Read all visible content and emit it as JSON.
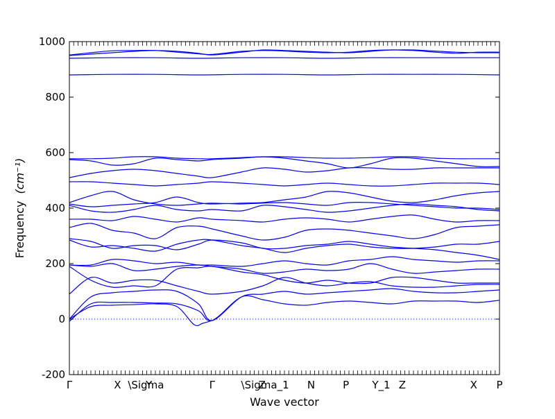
{
  "chart_data": {
    "type": "line",
    "title": "",
    "xlabel": "Wave vector",
    "ylabel": "Frequency",
    "ylabel_unit": "(cm⁻¹)",
    "ylim": [
      -200,
      1000
    ],
    "yticks": [
      -200,
      0,
      200,
      400,
      600,
      800,
      1000
    ],
    "grid": false,
    "line_color": "#0000ff",
    "zero_line": {
      "y": 0,
      "style": "dotted",
      "color": "#0000ff"
    },
    "x_range": [
      0,
      1
    ],
    "high_symmetry_points": [
      {
        "label": "Γ",
        "x": 0.0
      },
      {
        "label": "X",
        "x": 0.112
      },
      {
        "label": "\\Sigma",
        "x": 0.178
      },
      {
        "label": "Y",
        "x": 0.185
      },
      {
        "label": "Γ",
        "x": 0.332
      },
      {
        "label": "\\Sigma_1",
        "x": 0.455
      },
      {
        "label": "Z",
        "x": 0.448
      },
      {
        "label": "N",
        "x": 0.562
      },
      {
        "label": "P",
        "x": 0.643
      },
      {
        "label": "Y_1",
        "x": 0.725
      },
      {
        "label": "Z",
        "x": 0.774
      },
      {
        "label": "X",
        "x": 0.94
      },
      {
        "label": "P",
        "x": 1.0
      }
    ],
    "series": [
      {
        "x": [
          0.0,
          0.05,
          0.1,
          0.15,
          0.2,
          0.25,
          0.3,
          0.332,
          0.4,
          0.45,
          0.5,
          0.55,
          0.6,
          0.65,
          0.7,
          0.75,
          0.8,
          0.85,
          0.9,
          0.95,
          1.0
        ],
        "y": [
          -8,
          55,
          60,
          60,
          58,
          55,
          30,
          -5,
          80,
          70,
          55,
          50,
          60,
          65,
          60,
          55,
          65,
          65,
          65,
          60,
          68
        ]
      },
      {
        "x": [
          0.0,
          0.05,
          0.1,
          0.15,
          0.2,
          0.25,
          0.3,
          0.332,
          0.4,
          0.45,
          0.5,
          0.55,
          0.6,
          0.65,
          0.7,
          0.75,
          0.8,
          0.85,
          0.9,
          0.95,
          1.0
        ],
        "y": [
          0,
          80,
          95,
          100,
          105,
          100,
          55,
          -5,
          80,
          90,
          100,
          90,
          95,
          100,
          105,
          110,
          100,
          95,
          95,
          100,
          105
        ]
      },
      {
        "x": [
          0.0,
          0.05,
          0.1,
          0.15,
          0.2,
          0.25,
          0.29,
          0.31,
          0.332
        ],
        "y": [
          0,
          45,
          50,
          52,
          55,
          45,
          -20,
          -15,
          -5
        ]
      },
      {
        "x": [
          0.0,
          0.05,
          0.1,
          0.15,
          0.2,
          0.25,
          0.3,
          0.332,
          0.4,
          0.45,
          0.5,
          0.55,
          0.6,
          0.65,
          0.7,
          0.75,
          0.8,
          0.85,
          0.9,
          0.95,
          1.0
        ],
        "y": [
          90,
          150,
          130,
          140,
          140,
          120,
          100,
          90,
          100,
          120,
          150,
          130,
          120,
          130,
          135,
          120,
          115,
          115,
          120,
          125,
          125
        ]
      },
      {
        "x": [
          0.0,
          0.05,
          0.1,
          0.15,
          0.2,
          0.25,
          0.3,
          0.332,
          0.4,
          0.45,
          0.5,
          0.55,
          0.6,
          0.65,
          0.7,
          0.75,
          0.8,
          0.85,
          0.9,
          0.95,
          1.0
        ],
        "y": [
          190,
          140,
          115,
          120,
          120,
          180,
          185,
          190,
          170,
          160,
          140,
          130,
          140,
          130,
          130,
          150,
          150,
          140,
          130,
          130,
          130
        ]
      },
      {
        "x": [
          0.0,
          0.05,
          0.1,
          0.15,
          0.2,
          0.25,
          0.3,
          0.332,
          0.4,
          0.45,
          0.5,
          0.55,
          0.6,
          0.65,
          0.7,
          0.75,
          0.8,
          0.85,
          0.9,
          0.95,
          1.0
        ],
        "y": [
          195,
          190,
          200,
          175,
          180,
          190,
          195,
          190,
          180,
          165,
          170,
          180,
          175,
          180,
          200,
          180,
          165,
          170,
          175,
          180,
          180
        ]
      },
      {
        "x": [
          0.0,
          0.05,
          0.1,
          0.15,
          0.2,
          0.25,
          0.3,
          0.332,
          0.4,
          0.45,
          0.5,
          0.55,
          0.6,
          0.65,
          0.7,
          0.75,
          0.8,
          0.85,
          0.9,
          0.95,
          1.0
        ],
        "y": [
          195,
          195,
          215,
          210,
          200,
          205,
          195,
          195,
          190,
          200,
          210,
          200,
          195,
          210,
          215,
          225,
          215,
          210,
          205,
          210,
          210
        ]
      },
      {
        "x": [
          0.0,
          0.05,
          0.1,
          0.15,
          0.2,
          0.25,
          0.3,
          0.332,
          0.4,
          0.45,
          0.5,
          0.55,
          0.6,
          0.65,
          0.7,
          0.75,
          0.8,
          0.85,
          0.9,
          0.95,
          1.0
        ],
        "y": [
          285,
          260,
          265,
          255,
          245,
          270,
          285,
          285,
          265,
          255,
          240,
          255,
          265,
          270,
          260,
          255,
          255,
          260,
          270,
          270,
          280
        ]
      },
      {
        "x": [
          0.0,
          0.05,
          0.1,
          0.15,
          0.2,
          0.25,
          0.3,
          0.332,
          0.4,
          0.45,
          0.5,
          0.55,
          0.6,
          0.65,
          0.7,
          0.75,
          0.8,
          0.85,
          0.9,
          0.95,
          1.0
        ],
        "y": [
          290,
          280,
          255,
          265,
          265,
          250,
          270,
          285,
          275,
          255,
          255,
          265,
          270,
          280,
          270,
          260,
          255,
          250,
          240,
          230,
          215
        ]
      },
      {
        "x": [
          0.0,
          0.05,
          0.1,
          0.15,
          0.2,
          0.25,
          0.3,
          0.332,
          0.4,
          0.45,
          0.5,
          0.55,
          0.6,
          0.65,
          0.7,
          0.75,
          0.8,
          0.85,
          0.9,
          0.95,
          1.0
        ],
        "y": [
          330,
          345,
          320,
          310,
          290,
          330,
          335,
          325,
          300,
          285,
          295,
          320,
          325,
          320,
          310,
          300,
          290,
          305,
          330,
          335,
          340
        ]
      },
      {
        "x": [
          0.0,
          0.05,
          0.1,
          0.15,
          0.2,
          0.25,
          0.3,
          0.332,
          0.4,
          0.45,
          0.5,
          0.55,
          0.6,
          0.65,
          0.7,
          0.75,
          0.8,
          0.85,
          0.9,
          0.95,
          1.0
        ],
        "y": [
          360,
          360,
          355,
          370,
          360,
          350,
          365,
          360,
          355,
          350,
          360,
          365,
          360,
          350,
          360,
          370,
          375,
          360,
          350,
          355,
          355
        ]
      },
      {
        "x": [
          0.0,
          0.05,
          0.1,
          0.15,
          0.2,
          0.25,
          0.3,
          0.332,
          0.4,
          0.45,
          0.5,
          0.55,
          0.6,
          0.65,
          0.7,
          0.75,
          0.8,
          0.85,
          0.9,
          0.95,
          1.0
        ],
        "y": [
          410,
          390,
          385,
          395,
          410,
          395,
          390,
          395,
          390,
          410,
          405,
          395,
          385,
          390,
          400,
          410,
          415,
          410,
          405,
          395,
          390
        ]
      },
      {
        "x": [
          0.0,
          0.05,
          0.1,
          0.15,
          0.2,
          0.25,
          0.3,
          0.332,
          0.4,
          0.45,
          0.5,
          0.55,
          0.6,
          0.65,
          0.7,
          0.75,
          0.8,
          0.85,
          0.9,
          0.95,
          1.0
        ],
        "y": [
          415,
          405,
          410,
          415,
          420,
          440,
          420,
          415,
          418,
          420,
          430,
          440,
          460,
          455,
          440,
          425,
          420,
          430,
          445,
          455,
          460
        ]
      },
      {
        "x": [
          0.0,
          0.05,
          0.1,
          0.15,
          0.2,
          0.25,
          0.3,
          0.332,
          0.4,
          0.45,
          0.5,
          0.55,
          0.6,
          0.65,
          0.7,
          0.75,
          0.8,
          0.85,
          0.9,
          0.95,
          1.0
        ],
        "y": [
          420,
          445,
          460,
          430,
          415,
          410,
          415,
          418,
          415,
          418,
          420,
          415,
          410,
          420,
          420,
          415,
          410,
          405,
          400,
          400,
          395
        ]
      },
      {
        "x": [
          0.0,
          0.05,
          0.1,
          0.15,
          0.2,
          0.25,
          0.3,
          0.332,
          0.4,
          0.45,
          0.5,
          0.55,
          0.6,
          0.65,
          0.7,
          0.75,
          0.8,
          0.85,
          0.9,
          0.95,
          1.0
        ],
        "y": [
          495,
          495,
          490,
          485,
          480,
          485,
          490,
          495,
          490,
          485,
          480,
          485,
          490,
          485,
          480,
          480,
          485,
          490,
          490,
          490,
          485
        ]
      },
      {
        "x": [
          0.0,
          0.05,
          0.1,
          0.15,
          0.2,
          0.25,
          0.3,
          0.332,
          0.4,
          0.45,
          0.5,
          0.55,
          0.6,
          0.65,
          0.7,
          0.75,
          0.8,
          0.85,
          0.9,
          0.95,
          1.0
        ],
        "y": [
          510,
          525,
          535,
          540,
          535,
          525,
          515,
          510,
          530,
          545,
          540,
          530,
          535,
          545,
          545,
          540,
          540,
          545,
          545,
          545,
          545
        ]
      },
      {
        "x": [
          0.0,
          0.05,
          0.1,
          0.15,
          0.2,
          0.25,
          0.3,
          0.332,
          0.4,
          0.45,
          0.5,
          0.55,
          0.6,
          0.65,
          0.7,
          0.75,
          0.8,
          0.85,
          0.9,
          0.95,
          1.0
        ],
        "y": [
          575,
          570,
          555,
          560,
          580,
          575,
          570,
          575,
          580,
          585,
          580,
          570,
          560,
          545,
          560,
          580,
          580,
          570,
          560,
          550,
          550
        ]
      },
      {
        "x": [
          0.0,
          0.05,
          0.1,
          0.15,
          0.2,
          0.25,
          0.3,
          0.332,
          0.4,
          0.45,
          0.5,
          0.55,
          0.6,
          0.65,
          0.7,
          0.75,
          0.8,
          0.85,
          0.9,
          0.95,
          1.0
        ],
        "y": [
          578,
          578,
          580,
          585,
          585,
          580,
          578,
          578,
          582,
          585,
          585,
          582,
          580,
          580,
          582,
          585,
          585,
          580,
          578,
          578,
          578
        ]
      },
      {
        "x": [
          0.0,
          0.1,
          0.2,
          0.3,
          0.4,
          0.5,
          0.6,
          0.7,
          0.8,
          0.9,
          1.0
        ],
        "y": [
          880,
          882,
          882,
          880,
          882,
          882,
          880,
          882,
          882,
          882,
          880
        ]
      },
      {
        "x": [
          0.0,
          0.1,
          0.2,
          0.3,
          0.4,
          0.5,
          0.6,
          0.7,
          0.8,
          0.9,
          1.0
        ],
        "y": [
          940,
          942,
          942,
          940,
          942,
          942,
          940,
          942,
          942,
          942,
          942
        ]
      },
      {
        "x": [
          0.0,
          0.05,
          0.1,
          0.15,
          0.2,
          0.25,
          0.3,
          0.332,
          0.4,
          0.45,
          0.5,
          0.55,
          0.6,
          0.65,
          0.7,
          0.75,
          0.8,
          0.85,
          0.9,
          0.95,
          1.0
        ],
        "y": [
          950,
          955,
          960,
          965,
          968,
          965,
          958,
          952,
          962,
          970,
          968,
          965,
          962,
          960,
          965,
          970,
          968,
          962,
          958,
          962,
          962
        ]
      },
      {
        "x": [
          0.0,
          0.05,
          0.1,
          0.15,
          0.2,
          0.25,
          0.3,
          0.332,
          0.4,
          0.45,
          0.5,
          0.55,
          0.6,
          0.65,
          0.7,
          0.75,
          0.8,
          0.85,
          0.9,
          0.95,
          1.0
        ],
        "y": [
          952,
          960,
          967,
          968,
          968,
          962,
          956,
          954,
          965,
          968,
          966,
          962,
          960,
          962,
          968,
          970,
          970,
          966,
          962,
          960,
          960
        ]
      }
    ]
  }
}
